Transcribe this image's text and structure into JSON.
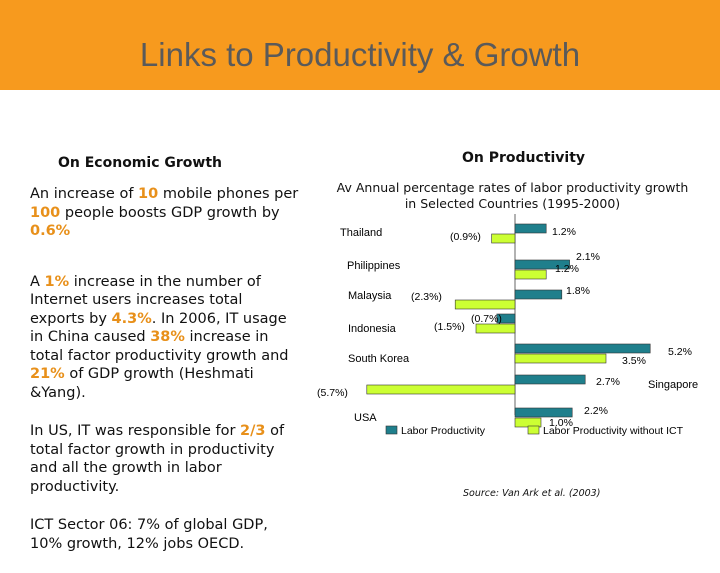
{
  "header": {
    "title": "Links to Productivity & Growth",
    "bg_color": "#F79A1E",
    "title_color": "#5a5a5a"
  },
  "left": {
    "heading": "On Economic Growth",
    "p1": {
      "t1": "An increase of ",
      "h1": "10",
      "t2": " mobile phones per ",
      "h2": "100",
      "t3": " people boosts GDP growth by ",
      "h3": "0.6%"
    },
    "p2": {
      "t1": "A ",
      "h1": "1%",
      "t2": " increase in the number of Internet users increases total exports by ",
      "h2": "4.3%",
      "t3": ". In 2006, IT usage in China caused ",
      "h3": "38%",
      "t4": " increase in total factor productivity growth and ",
      "h4": "21%",
      "t5": " of GDP growth (Heshmati &Yang)."
    },
    "p3": {
      "t1": "In US, IT was responsible for ",
      "h1": "2/3",
      "t2": " of total factor growth in productivity and all the growth in labor productivity."
    },
    "p4": {
      "t1": "ICT Sector 06: 7% of global GDP, 10% growth, 12% jobs OECD."
    },
    "highlight_color": "#E8901A"
  },
  "right": {
    "heading": "On Productivity",
    "source": "Source: Van Ark et al. (2003)"
  },
  "chart_data": {
    "type": "bar",
    "orientation": "horizontal",
    "title": "Av Annual percentage rates of labor productivity growth in Selected Countries (1995-2000)",
    "categories": [
      "Thailand",
      "Philippines",
      "Malaysia",
      "Indonesia",
      "South Korea",
      "Singapore",
      "USA"
    ],
    "series": [
      {
        "name": "Labor Productivity",
        "color": "#1F7F8C",
        "values": [
          1.2,
          2.1,
          1.8,
          -0.7,
          5.2,
          2.7,
          2.2
        ],
        "labels": [
          "1.2%",
          "2.1%",
          "1.8%",
          "(0.7%)",
          "5.2%",
          "2.7%",
          "2.2%"
        ]
      },
      {
        "name": "Labor Productivity without ICT",
        "color": "#CCFF33",
        "values": [
          -0.9,
          1.2,
          -2.3,
          -1.5,
          3.5,
          -5.7,
          1.0
        ],
        "labels": [
          "(0.9%)",
          "1.2%",
          "(2.3%)",
          "(1.5%)",
          "3.5%",
          "(5.7%)",
          "1.0%"
        ]
      }
    ],
    "legend_position": "bottom",
    "grid": false
  }
}
